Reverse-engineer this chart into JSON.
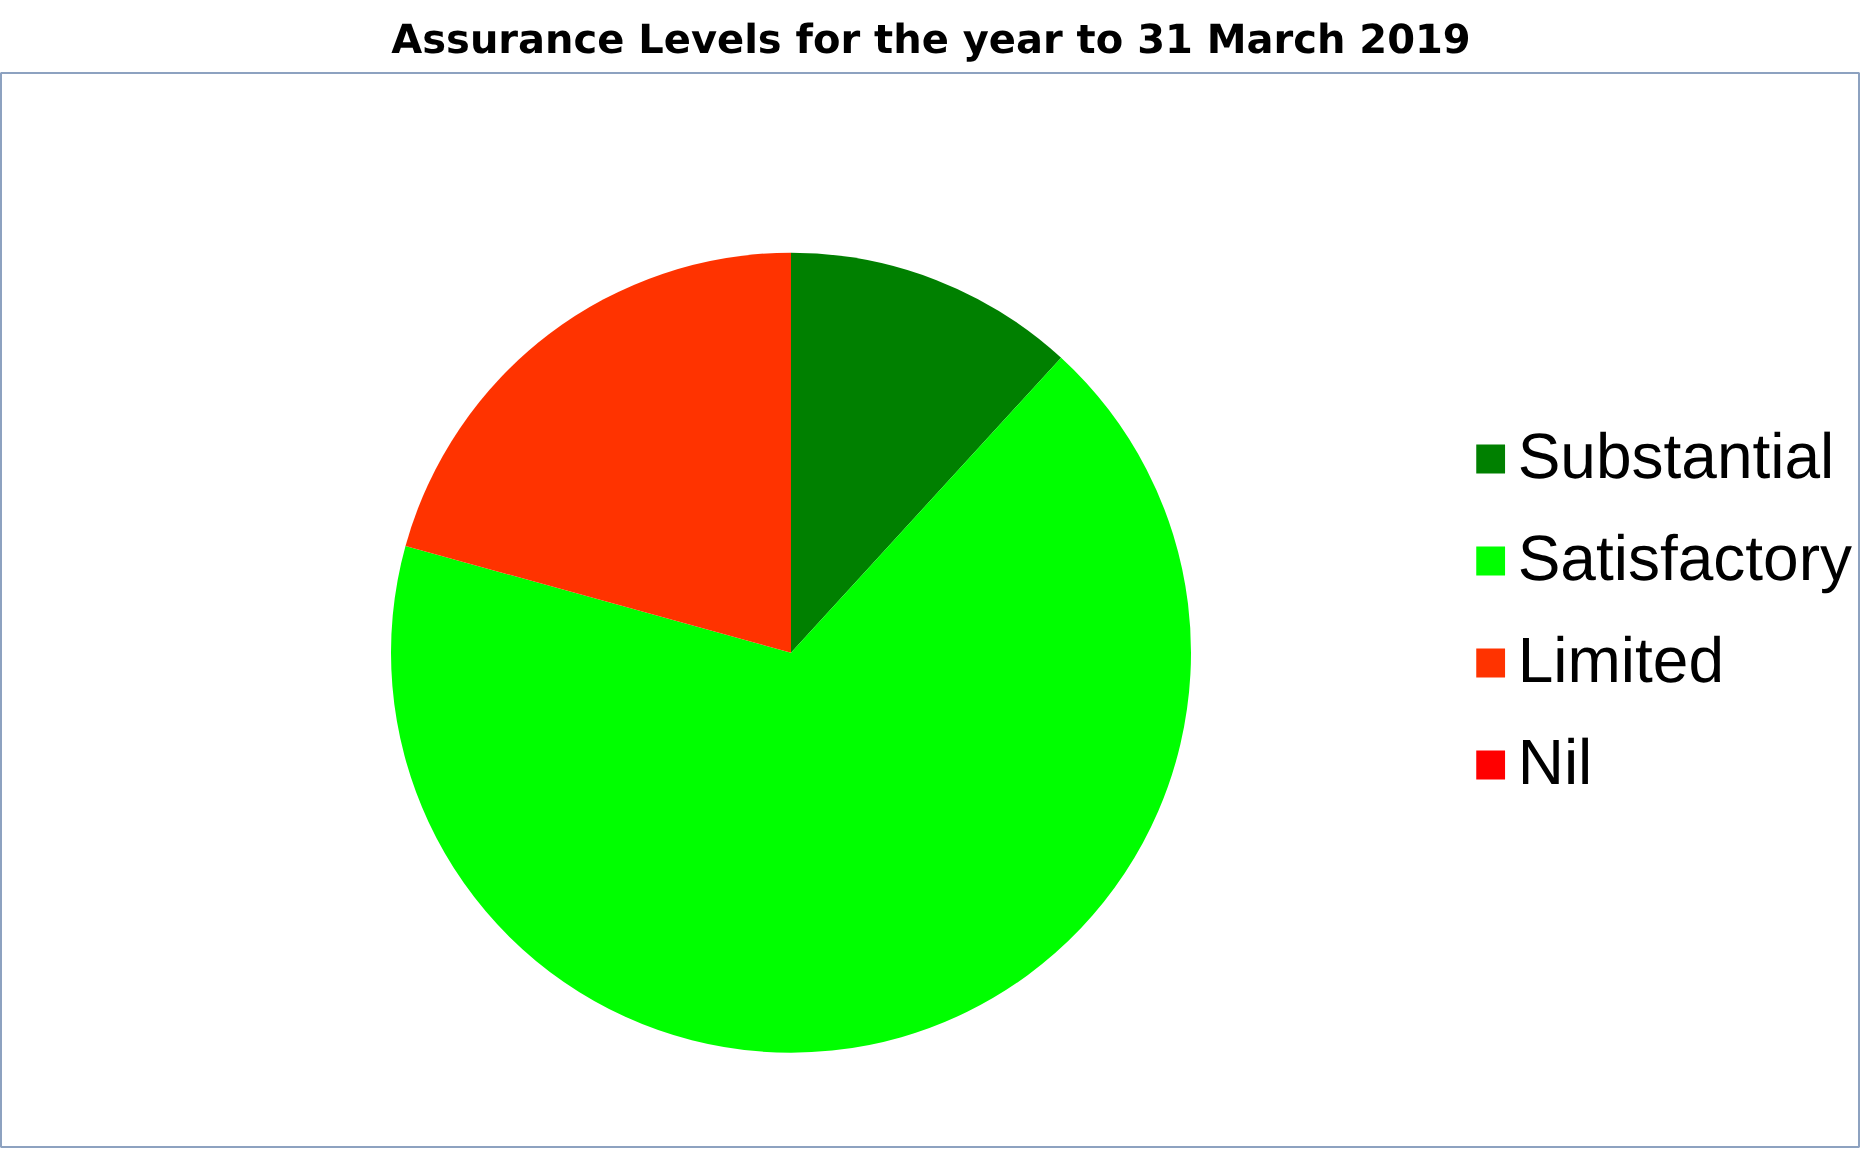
{
  "chart_data": {
    "type": "pie",
    "title": "Assurance Levels for the year to 31 March 2019",
    "categories": [
      "Substantial",
      "Satisfactory",
      "Limited",
      "Nil"
    ],
    "values": [
      11.8,
      67.5,
      20.7,
      0
    ],
    "colors": [
      "#008000",
      "#00ff00",
      "#ff3300",
      "#ff0000"
    ],
    "legend": "right"
  }
}
